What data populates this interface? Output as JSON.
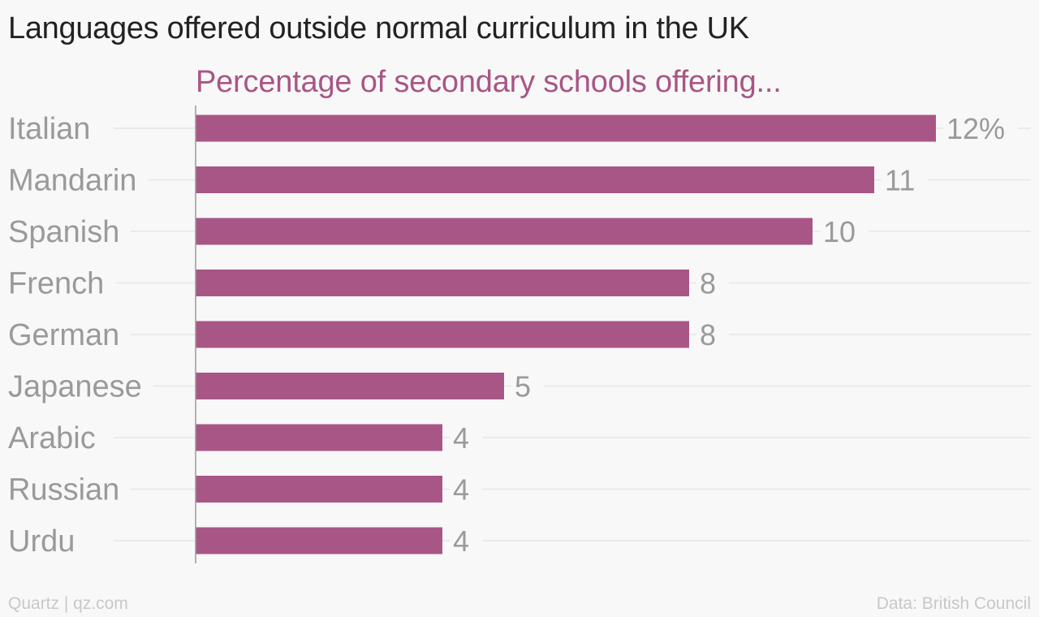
{
  "title": "Languages offered outside normal curriculum in the UK",
  "subtitle": "Percentage of secondary schools offering...",
  "footer": {
    "source_left": "Quartz | qz.com",
    "source_right": "Data: British Council"
  },
  "colors": {
    "bar": "#a85685",
    "subtitle": "#a85685",
    "label": "#9a9a9a",
    "gridline": "#e6e6e6",
    "axis": "#999999"
  },
  "chart_data": {
    "type": "bar",
    "orientation": "horizontal",
    "categories": [
      "Italian",
      "Mandarin",
      "Spanish",
      "French",
      "German",
      "Japanese",
      "Arabic",
      "Russian",
      "Urdu"
    ],
    "values": [
      12,
      11,
      10,
      8,
      8,
      5,
      4,
      4,
      4
    ],
    "value_labels": [
      "12%",
      "11",
      "10",
      "8",
      "8",
      "5",
      "4",
      "4",
      "4"
    ],
    "unit": "%",
    "xlim": [
      0,
      12
    ],
    "grid": "horizontal gridlines per category"
  }
}
